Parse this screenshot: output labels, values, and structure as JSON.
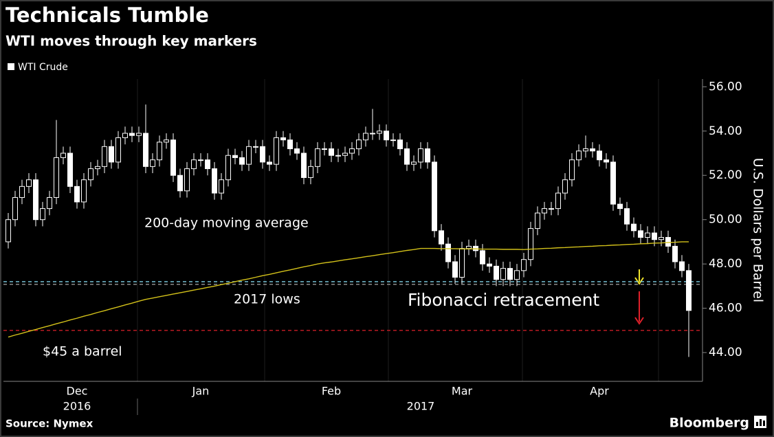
{
  "chart_data": {
    "type": "candlestick",
    "title": "Technicals Tumble",
    "subtitle": "WTI moves through key markers",
    "ylabel": "U.S. Dollars per Barrel",
    "source": "Source: Nymex",
    "brand": "Bloomberg",
    "ylim": [
      42.7,
      56.35
    ],
    "yticks": [
      {
        "value": 44,
        "label": "44.00"
      },
      {
        "value": 46,
        "label": "46.00"
      },
      {
        "value": 48,
        "label": "48.00"
      },
      {
        "value": 50,
        "label": "50.00"
      },
      {
        "value": 52,
        "label": "52.00"
      },
      {
        "value": 54,
        "label": "54.00"
      },
      {
        "value": 56,
        "label": "56.00"
      }
    ],
    "categories": [
      null,
      null,
      null,
      null,
      null,
      null,
      null,
      null,
      null,
      null,
      "Dec",
      null,
      null,
      null,
      null,
      null,
      null,
      null,
      null,
      null,
      null,
      null,
      null,
      null,
      null,
      null,
      null,
      null,
      "Jan",
      null,
      null,
      null,
      null,
      null,
      null,
      null,
      null,
      null,
      null,
      null,
      null,
      null,
      null,
      null,
      null,
      null,
      null,
      "Feb",
      null,
      null,
      null,
      null,
      null,
      null,
      null,
      null,
      null,
      null,
      null,
      null,
      null,
      null,
      null,
      null,
      null,
      null,
      "Mar",
      null,
      null,
      null,
      null,
      null,
      null,
      null,
      null,
      null,
      null,
      null,
      null,
      null,
      null,
      null,
      null,
      null,
      null,
      null,
      "Apr",
      null,
      null,
      null,
      null,
      null,
      null,
      null,
      null,
      null,
      null,
      null,
      null,
      null
    ],
    "year_labels": [
      null,
      null,
      null,
      null,
      null,
      null,
      null,
      null,
      null,
      null,
      "2016",
      null,
      null,
      null,
      null,
      null,
      null,
      null,
      null,
      null,
      null,
      null,
      null,
      null,
      null,
      null,
      null,
      null,
      null,
      null,
      null,
      null,
      null,
      null,
      null,
      null,
      null,
      null,
      null,
      null,
      null,
      null,
      null,
      null,
      null,
      null,
      null,
      null,
      null,
      null,
      null,
      null,
      null,
      null,
      null,
      null,
      null,
      null,
      null,
      null,
      "2017",
      null,
      null,
      null,
      null,
      null,
      null,
      null,
      null,
      null,
      null,
      null,
      null,
      null,
      null,
      null,
      null,
      null,
      null,
      null,
      null,
      null,
      null,
      null,
      null,
      null,
      null,
      null,
      null,
      null,
      null,
      null,
      null,
      null,
      null,
      null,
      null,
      null,
      null,
      null
    ],
    "series": [
      {
        "name": "WTI Crude",
        "color": "#ffffff",
        "open": [
          49.0,
          50.0,
          51.0,
          51.5,
          51.8,
          50.0,
          50.5,
          51.0,
          52.8,
          53.0,
          51.5,
          50.8,
          51.8,
          52.3,
          52.4,
          53.3,
          52.6,
          53.7,
          53.9,
          53.8,
          53.9,
          52.4,
          52.7,
          53.5,
          53.6,
          52.0,
          51.3,
          52.3,
          52.7,
          52.7,
          52.3,
          51.2,
          51.8,
          52.9,
          52.8,
          52.5,
          53.3,
          53.3,
          52.6,
          52.5,
          53.7,
          53.6,
          53.2,
          53.0,
          51.9,
          52.4,
          53.2,
          53.2,
          52.9,
          52.9,
          53.0,
          53.2,
          53.6,
          53.9,
          53.9,
          54.0,
          53.6,
          53.6,
          53.2,
          52.5,
          52.6,
          53.2,
          52.6,
          49.5,
          48.9,
          48.1,
          47.4,
          48.7,
          48.8,
          48.6,
          48.0,
          47.9,
          47.3,
          47.8,
          47.3,
          47.7,
          48.2,
          49.6,
          50.3,
          50.5,
          50.5,
          51.2,
          51.8,
          52.7,
          53.1,
          53.2,
          53.1,
          52.7,
          52.6,
          50.7,
          50.5,
          49.8,
          49.5,
          49.2,
          49.4,
          49.1,
          49.2,
          48.8,
          48.1,
          47.7
        ],
        "high": [
          50.3,
          51.3,
          51.8,
          52.1,
          52.1,
          50.8,
          51.3,
          54.5,
          53.3,
          53.3,
          51.8,
          52.1,
          52.6,
          52.7,
          53.6,
          53.6,
          54.0,
          54.2,
          54.2,
          54.2,
          55.2,
          53.0,
          53.8,
          53.9,
          53.9,
          52.3,
          52.6,
          53.0,
          53.0,
          53.0,
          52.6,
          52.1,
          53.2,
          53.2,
          53.1,
          53.6,
          53.6,
          53.6,
          52.9,
          54.0,
          54.0,
          53.9,
          53.5,
          53.3,
          52.7,
          53.5,
          53.5,
          53.5,
          53.2,
          53.3,
          53.5,
          53.9,
          54.2,
          55.0,
          54.3,
          54.3,
          53.9,
          53.9,
          53.5,
          52.9,
          53.5,
          53.5,
          52.9,
          49.8,
          49.2,
          48.4,
          49.0,
          49.1,
          49.1,
          48.9,
          48.3,
          48.2,
          48.1,
          48.1,
          48.0,
          48.5,
          49.9,
          50.6,
          50.8,
          50.8,
          51.5,
          52.1,
          53.0,
          53.4,
          53.8,
          53.5,
          53.4,
          53.0,
          52.9,
          51.0,
          50.8,
          50.1,
          49.8,
          49.7,
          49.7,
          49.5,
          49.5,
          49.1,
          48.4,
          48.0
        ],
        "low": [
          48.7,
          49.7,
          50.7,
          51.2,
          49.7,
          49.7,
          50.2,
          50.7,
          52.5,
          51.2,
          50.5,
          50.5,
          51.5,
          52.0,
          52.1,
          52.3,
          52.3,
          53.4,
          53.5,
          53.5,
          52.1,
          52.1,
          52.4,
          53.2,
          51.7,
          51.0,
          51.0,
          52.0,
          52.4,
          52.0,
          50.9,
          50.9,
          51.5,
          52.5,
          52.2,
          52.2,
          53.0,
          52.3,
          52.2,
          52.2,
          53.3,
          52.9,
          52.7,
          51.6,
          51.6,
          52.1,
          52.9,
          52.6,
          52.6,
          52.6,
          52.7,
          52.9,
          53.3,
          53.6,
          53.6,
          53.3,
          53.3,
          52.9,
          52.2,
          52.2,
          52.3,
          52.3,
          49.2,
          48.6,
          47.8,
          47.1,
          47.1,
          48.4,
          48.3,
          47.7,
          47.6,
          47.0,
          47.0,
          47.0,
          47.0,
          47.4,
          47.9,
          49.3,
          50.0,
          50.2,
          50.2,
          50.9,
          51.5,
          52.4,
          52.8,
          52.8,
          52.4,
          52.3,
          50.4,
          50.2,
          49.5,
          49.2,
          48.9,
          48.9,
          48.8,
          48.8,
          48.5,
          47.8,
          47.4,
          43.8
        ],
        "close": [
          50.0,
          51.0,
          51.5,
          51.8,
          50.0,
          50.5,
          51.0,
          52.8,
          53.0,
          51.5,
          50.8,
          51.8,
          52.3,
          52.4,
          53.3,
          52.6,
          53.7,
          53.9,
          53.8,
          53.9,
          52.4,
          52.7,
          53.5,
          53.6,
          52.0,
          51.3,
          52.3,
          52.7,
          52.7,
          52.3,
          51.2,
          51.8,
          52.9,
          52.8,
          52.5,
          53.3,
          53.3,
          52.6,
          52.5,
          53.7,
          53.6,
          53.2,
          53.0,
          51.9,
          52.4,
          53.2,
          53.2,
          52.9,
          52.9,
          53.0,
          53.2,
          53.6,
          53.9,
          53.9,
          54.0,
          53.6,
          53.6,
          53.2,
          52.5,
          52.6,
          53.2,
          52.6,
          49.5,
          48.9,
          48.1,
          47.4,
          48.7,
          48.8,
          48.6,
          48.0,
          47.9,
          47.3,
          47.8,
          47.3,
          47.7,
          48.2,
          49.6,
          50.3,
          50.5,
          50.5,
          51.2,
          51.8,
          52.7,
          53.1,
          53.2,
          53.1,
          52.7,
          52.6,
          50.7,
          50.5,
          49.8,
          49.5,
          49.2,
          49.4,
          49.1,
          49.2,
          48.8,
          48.1,
          47.7,
          45.9
        ]
      },
      {
        "name": "200-day moving average",
        "type": "line",
        "color": "#d4c21a",
        "values": [
          44.7,
          44.79,
          44.87,
          44.96,
          45.04,
          45.13,
          45.21,
          45.3,
          45.38,
          45.47,
          45.55,
          45.64,
          45.72,
          45.81,
          45.89,
          45.98,
          46.06,
          46.15,
          46.23,
          46.32,
          46.4,
          46.46,
          46.52,
          46.58,
          46.64,
          46.7,
          46.76,
          46.82,
          46.88,
          46.94,
          47.0,
          47.07,
          47.13,
          47.2,
          47.27,
          47.33,
          47.4,
          47.47,
          47.53,
          47.6,
          47.67,
          47.73,
          47.8,
          47.87,
          47.93,
          48.0,
          48.05,
          48.09,
          48.14,
          48.19,
          48.23,
          48.28,
          48.33,
          48.37,
          48.42,
          48.47,
          48.51,
          48.56,
          48.61,
          48.65,
          48.7,
          48.7,
          48.7,
          48.69,
          48.69,
          48.69,
          48.68,
          48.68,
          48.68,
          48.67,
          48.67,
          48.67,
          48.66,
          48.66,
          48.66,
          48.65,
          48.67,
          48.68,
          48.7,
          48.71,
          48.73,
          48.74,
          48.76,
          48.77,
          48.79,
          48.8,
          48.82,
          48.83,
          48.85,
          48.86,
          48.88,
          48.89,
          48.91,
          48.92,
          48.94,
          48.95,
          48.97,
          48.98,
          49.0,
          49.0
        ]
      }
    ],
    "reference_lines": [
      {
        "value": 47.2,
        "color": "#7fd3e8",
        "label": "Fibonacci retracement"
      },
      {
        "value": 47.08,
        "color": "#9a9a9a",
        "label": "2017 lows"
      },
      {
        "value": 45.0,
        "color": "#e0202a",
        "label": "$45 a barrel"
      }
    ]
  }
}
